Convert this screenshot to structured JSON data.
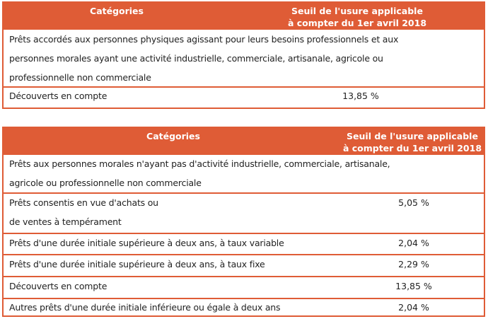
{
  "table1": {
    "header": {
      "category": "Catégories",
      "rate_line1": "Seuil de l'usure applicable",
      "rate_line2": "à compter du 1er avril 2018"
    },
    "rows": [
      {
        "lines": [
          "Prêts accordés aux personnes physiques agissant pour leurs besoins professionnels et aux",
          "personnes morales ayant une activité industrielle, commerciale, artisanale, agricole ou",
          "professionnelle non commerciale"
        ],
        "value": ""
      },
      {
        "lines": [
          "Découverts en compte"
        ],
        "value": "13,85 %"
      }
    ]
  },
  "table2": {
    "header": {
      "category": "Catégories",
      "rate_line1": "Seuil de l'usure applicable",
      "rate_line2": "à compter du 1er avril 2018"
    },
    "rows": [
      {
        "lines": [
          "Prêts aux personnes morales n'ayant pas d'activité industrielle, commerciale, artisanale,",
          "agricole ou professionnelle non commerciale"
        ],
        "value": ""
      },
      {
        "lines": [
          "Prêts consentis en vue d'achats ou",
          "de ventes à tempérament"
        ],
        "value": "5,05 %"
      },
      {
        "lines": [
          "Prêts d'une durée initiale supérieure à deux ans, à taux variable"
        ],
        "value": "2,04 %"
      },
      {
        "lines": [
          "Prêts d'une durée initiale supérieure à deux ans, à taux fixe"
        ],
        "value": "2,29 %"
      },
      {
        "lines": [
          "Découverts en compte"
        ],
        "value": "13,85 %"
      },
      {
        "lines": [
          "Autres prêts d'une durée initiale inférieure ou égale à deux ans"
        ],
        "value": "2,04 %"
      }
    ]
  },
  "colors": {
    "accent": "#DF5C36"
  }
}
